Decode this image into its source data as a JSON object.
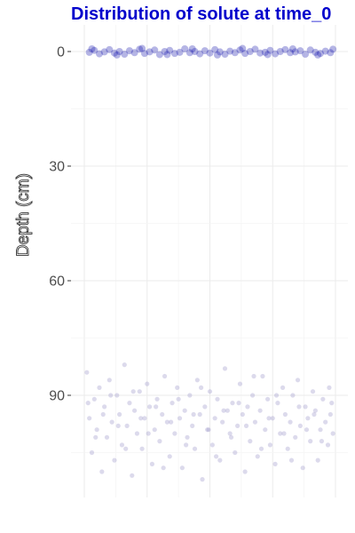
{
  "chart_data": {
    "type": "scatter",
    "title": "Distribution of solute at time_0",
    "xlabel": "",
    "ylabel": "Depth (cm)",
    "y_reversed": true,
    "ylim": [
      -3,
      115
    ],
    "y_ticks": [
      0,
      30,
      60,
      90
    ],
    "y_tick_labels": [
      "0",
      "30",
      "60",
      "90"
    ],
    "x_tick_labels": [],
    "grid": true,
    "legend": "none",
    "colors": {
      "title": "#0000cc",
      "series_initial": "#0a0aa8",
      "series_lower": "#9c94c8",
      "grid_major": "#ebebeb",
      "grid_minor": "#f5f5f5",
      "tick_label": "#4d4d4d"
    },
    "series": [
      {
        "marker_color": "#0a0aa8",
        "opacity": 0.3,
        "points": [
          [
            0.02,
            0.2
          ],
          [
            0.04,
            -0.3
          ],
          [
            0.06,
            0.6
          ],
          [
            0.08,
            0.1
          ],
          [
            0.1,
            -0.5
          ],
          [
            0.12,
            0.4
          ],
          [
            0.14,
            0.0
          ],
          [
            0.16,
            0.7
          ],
          [
            0.18,
            -0.2
          ],
          [
            0.2,
            0.3
          ],
          [
            0.22,
            -0.6
          ],
          [
            0.24,
            0.5
          ],
          [
            0.26,
            0.1
          ],
          [
            0.28,
            -0.4
          ],
          [
            0.3,
            0.8
          ],
          [
            0.32,
            0.0
          ],
          [
            0.34,
            -0.3
          ],
          [
            0.36,
            0.5
          ],
          [
            0.38,
            0.2
          ],
          [
            0.4,
            -0.7
          ],
          [
            0.42,
            0.3
          ],
          [
            0.44,
            0.0
          ],
          [
            0.46,
            0.6
          ],
          [
            0.48,
            -0.2
          ],
          [
            0.5,
            0.4
          ],
          [
            0.52,
            -0.5
          ],
          [
            0.54,
            0.1
          ],
          [
            0.56,
            0.7
          ],
          [
            0.58,
            -0.1
          ],
          [
            0.6,
            0.3
          ],
          [
            0.62,
            -0.4
          ],
          [
            0.64,
            0.5
          ],
          [
            0.66,
            0.0
          ],
          [
            0.68,
            -0.6
          ],
          [
            0.7,
            0.4
          ],
          [
            0.72,
            0.2
          ],
          [
            0.74,
            -0.3
          ],
          [
            0.76,
            0.6
          ],
          [
            0.78,
            0.0
          ],
          [
            0.8,
            -0.5
          ],
          [
            0.82,
            0.3
          ],
          [
            0.84,
            0.1
          ],
          [
            0.86,
            -0.2
          ],
          [
            0.88,
            0.7
          ],
          [
            0.9,
            -0.4
          ],
          [
            0.92,
            0.2
          ],
          [
            0.94,
            0.5
          ],
          [
            0.96,
            -0.1
          ],
          [
            0.98,
            0.3
          ],
          [
            0.99,
            -0.6
          ],
          [
            0.03,
            -0.7
          ],
          [
            0.13,
            0.9
          ],
          [
            0.23,
            -0.8
          ],
          [
            0.33,
            0.8
          ],
          [
            0.43,
            -0.7
          ],
          [
            0.53,
            0.9
          ],
          [
            0.63,
            -0.8
          ],
          [
            0.73,
            0.8
          ],
          [
            0.83,
            -0.7
          ],
          [
            0.93,
            0.9
          ]
        ]
      },
      {
        "marker_color": "#9c94c8",
        "opacity": 0.35,
        "points": [
          [
            0.01,
            84
          ],
          [
            0.02,
            96
          ],
          [
            0.03,
            105
          ],
          [
            0.04,
            91
          ],
          [
            0.05,
            99
          ],
          [
            0.06,
            88
          ],
          [
            0.07,
            110
          ],
          [
            0.08,
            93
          ],
          [
            0.09,
            101
          ],
          [
            0.1,
            86
          ],
          [
            0.11,
            97
          ],
          [
            0.12,
            107
          ],
          [
            0.13,
            90
          ],
          [
            0.14,
            95
          ],
          [
            0.15,
            103
          ],
          [
            0.16,
            82
          ],
          [
            0.17,
            98
          ],
          [
            0.18,
            92
          ],
          [
            0.19,
            111
          ],
          [
            0.2,
            94
          ],
          [
            0.21,
            100
          ],
          [
            0.22,
            89
          ],
          [
            0.23,
            104
          ],
          [
            0.24,
            96
          ],
          [
            0.25,
            87
          ],
          [
            0.26,
            93
          ],
          [
            0.27,
            108
          ],
          [
            0.28,
            99
          ],
          [
            0.29,
            91
          ],
          [
            0.3,
            102
          ],
          [
            0.31,
            95
          ],
          [
            0.32,
            85
          ],
          [
            0.33,
            97
          ],
          [
            0.34,
            106
          ],
          [
            0.35,
            92
          ],
          [
            0.36,
            100
          ],
          [
            0.37,
            88
          ],
          [
            0.38,
            96
          ],
          [
            0.39,
            109
          ],
          [
            0.4,
            94
          ],
          [
            0.41,
            101
          ],
          [
            0.42,
            90
          ],
          [
            0.43,
            98
          ],
          [
            0.44,
            104
          ],
          [
            0.45,
            86
          ],
          [
            0.46,
            95
          ],
          [
            0.47,
            112
          ],
          [
            0.48,
            93
          ],
          [
            0.49,
            99
          ],
          [
            0.5,
            89
          ],
          [
            0.51,
            103
          ],
          [
            0.52,
            96
          ],
          [
            0.53,
            91
          ],
          [
            0.54,
            107
          ],
          [
            0.55,
            97
          ],
          [
            0.56,
            83
          ],
          [
            0.57,
            94
          ],
          [
            0.58,
            100
          ],
          [
            0.59,
            92
          ],
          [
            0.6,
            105
          ],
          [
            0.61,
            98
          ],
          [
            0.62,
            87
          ],
          [
            0.63,
            95
          ],
          [
            0.64,
            110
          ],
          [
            0.65,
            93
          ],
          [
            0.66,
            102
          ],
          [
            0.67,
            90
          ],
          [
            0.68,
            97
          ],
          [
            0.69,
            106
          ],
          [
            0.7,
            94
          ],
          [
            0.71,
            85
          ],
          [
            0.72,
            99
          ],
          [
            0.73,
            91
          ],
          [
            0.74,
            103
          ],
          [
            0.75,
            96
          ],
          [
            0.76,
            108
          ],
          [
            0.77,
            92
          ],
          [
            0.78,
            100
          ],
          [
            0.79,
            88
          ],
          [
            0.8,
            95
          ],
          [
            0.81,
            104
          ],
          [
            0.82,
            97
          ],
          [
            0.83,
            90
          ],
          [
            0.84,
            101
          ],
          [
            0.85,
            86
          ],
          [
            0.86,
            98
          ],
          [
            0.87,
            109
          ],
          [
            0.88,
            93
          ],
          [
            0.89,
            96
          ],
          [
            0.9,
            102
          ],
          [
            0.91,
            89
          ],
          [
            0.92,
            94
          ],
          [
            0.93,
            107
          ],
          [
            0.94,
            99
          ],
          [
            0.95,
            91
          ],
          [
            0.96,
            97
          ],
          [
            0.97,
            103
          ],
          [
            0.98,
            95
          ],
          [
            0.99,
            100
          ],
          [
            0.985,
            92
          ],
          [
            0.015,
            92
          ],
          [
            0.045,
            101
          ],
          [
            0.075,
            95
          ],
          [
            0.105,
            90
          ],
          [
            0.135,
            98
          ],
          [
            0.165,
            104
          ],
          [
            0.195,
            89
          ],
          [
            0.225,
            96
          ],
          [
            0.255,
            100
          ],
          [
            0.285,
            93
          ],
          [
            0.315,
            109
          ],
          [
            0.345,
            97
          ],
          [
            0.375,
            91
          ],
          [
            0.405,
            103
          ],
          [
            0.435,
            95
          ],
          [
            0.465,
            88
          ],
          [
            0.495,
            99
          ],
          [
            0.525,
            106
          ],
          [
            0.555,
            94
          ],
          [
            0.585,
            101
          ],
          [
            0.615,
            92
          ],
          [
            0.645,
            98
          ],
          [
            0.675,
            85
          ],
          [
            0.705,
            104
          ],
          [
            0.735,
            96
          ],
          [
            0.765,
            90
          ],
          [
            0.795,
            100
          ],
          [
            0.825,
            107
          ],
          [
            0.855,
            93
          ],
          [
            0.885,
            99
          ],
          [
            0.915,
            95
          ],
          [
            0.945,
            102
          ],
          [
            0.975,
            88
          ]
        ]
      }
    ]
  }
}
